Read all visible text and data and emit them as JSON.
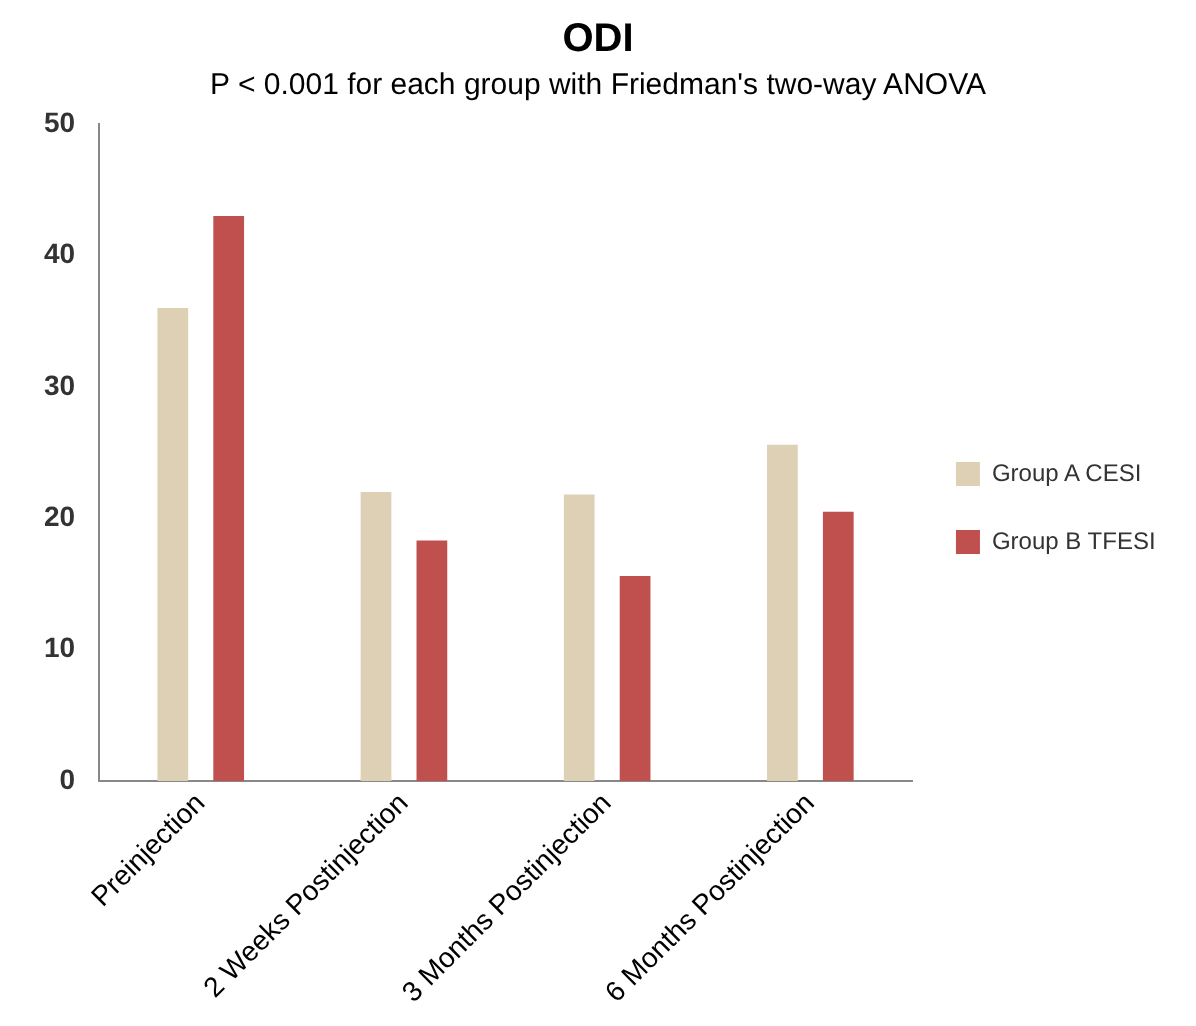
{
  "chart_data": {
    "type": "bar",
    "title": "ODI",
    "subtitle": "P < 0.001 for each group with Friedman's two-way ANOVA",
    "categories": [
      "Preinjection",
      "2 Weeks Postinjection",
      "3 Months Postinjection",
      "6 Months Postinjection"
    ],
    "series": [
      {
        "name": "Group A CESI",
        "color": "#ddd0b4",
        "values": [
          36,
          22,
          21.8,
          25.6
        ]
      },
      {
        "name": "Group B TFESI",
        "color": "#c0504d",
        "values": [
          43,
          18.3,
          15.6,
          20.5
        ]
      }
    ],
    "ylim": [
      0,
      50
    ],
    "yticks": [
      0,
      10,
      20,
      30,
      40,
      50
    ],
    "grid": false,
    "legend": "right"
  }
}
